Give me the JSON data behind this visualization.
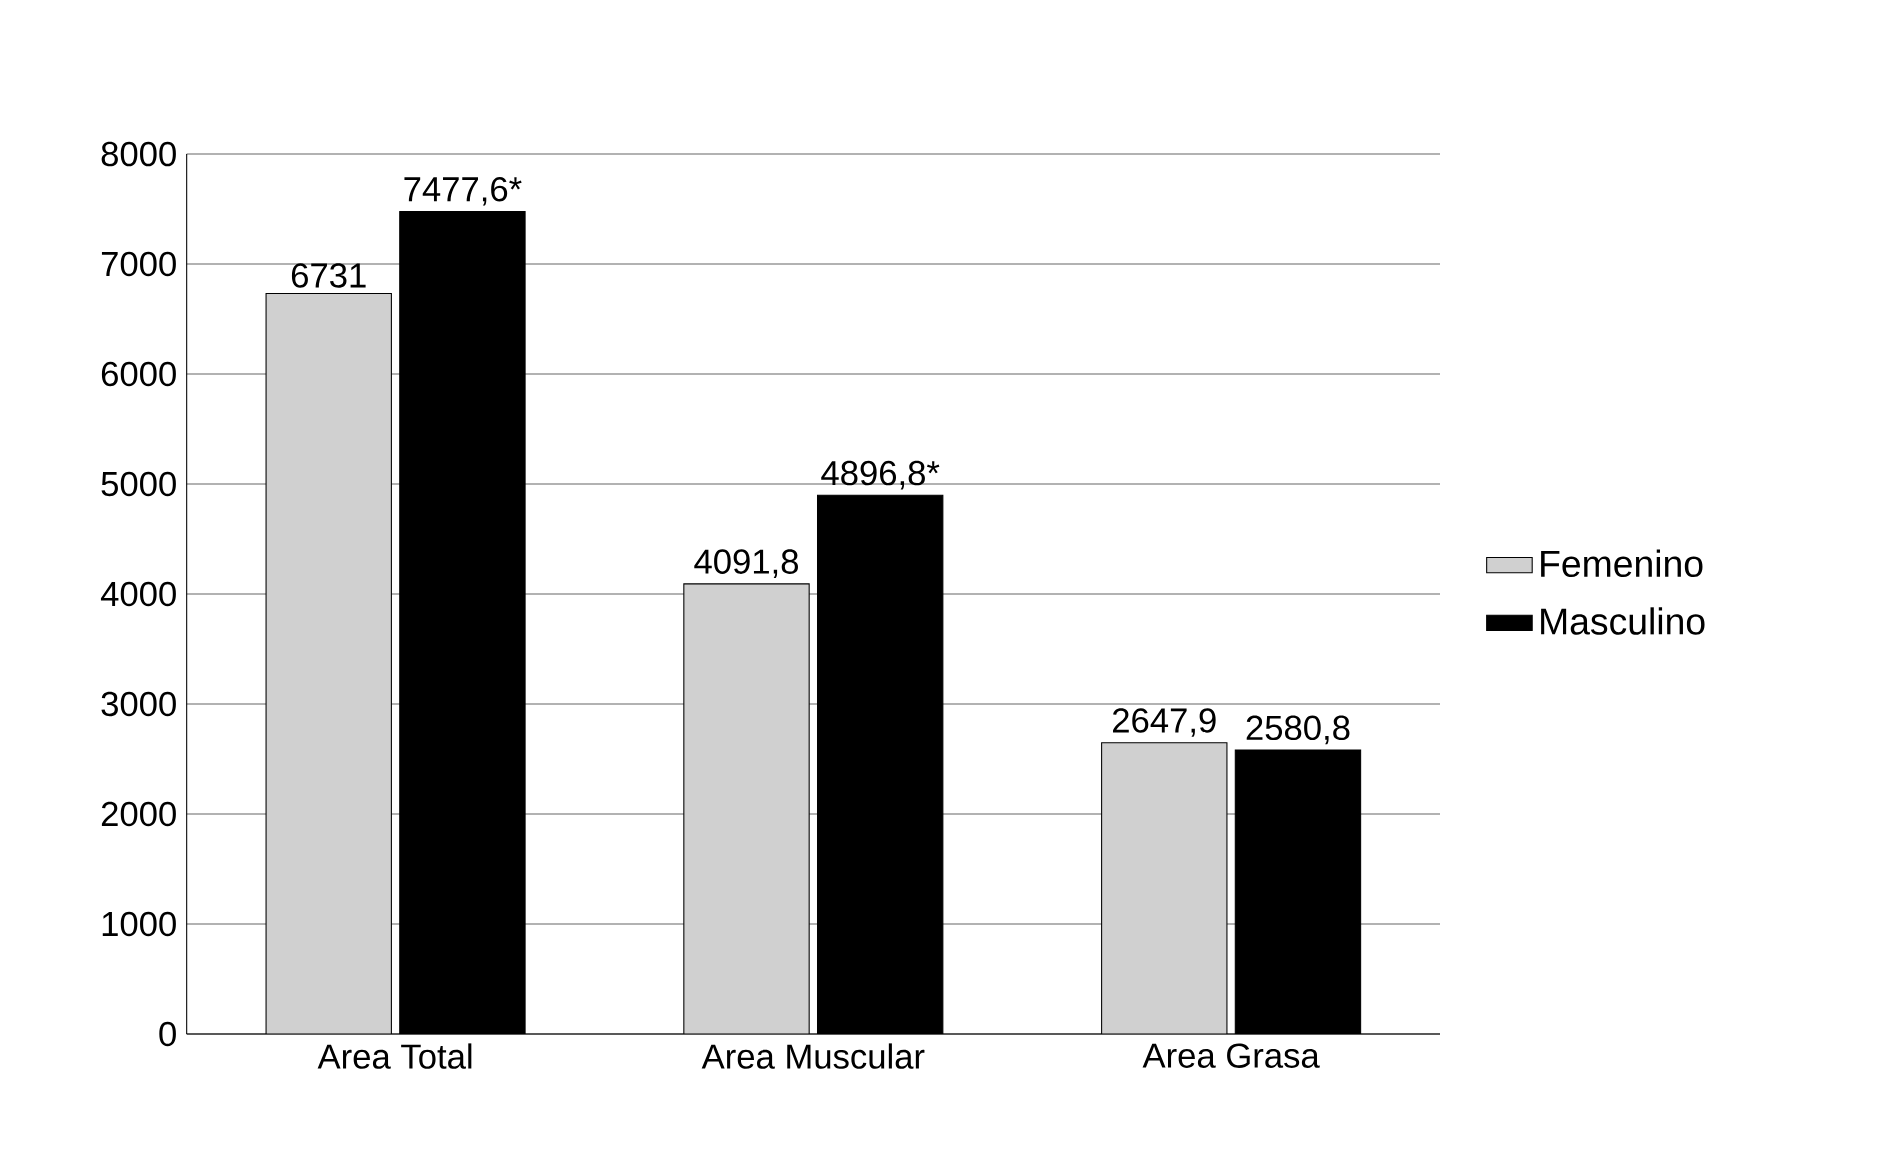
{
  "chart_data": {
    "type": "bar",
    "categories": [
      "Area Total",
      "Area Muscular",
      "Area Grasa"
    ],
    "series": [
      {
        "name": "Femenino",
        "color": "#d0d0d0",
        "values": [
          6731,
          4091.8,
          2647.9
        ],
        "value_labels": [
          "6731",
          "4091,8",
          "2647,9"
        ]
      },
      {
        "name": "Masculino",
        "color": "#000000",
        "values": [
          7477.6,
          4896.8,
          2580.8
        ],
        "value_labels": [
          "7477,6*",
          "4896,8*",
          "2580,8"
        ]
      }
    ],
    "ylim": [
      0,
      8000
    ],
    "yticks": [
      0,
      1000,
      2000,
      3000,
      4000,
      5000,
      6000,
      7000,
      8000
    ],
    "grid": "y",
    "legend": "right"
  }
}
